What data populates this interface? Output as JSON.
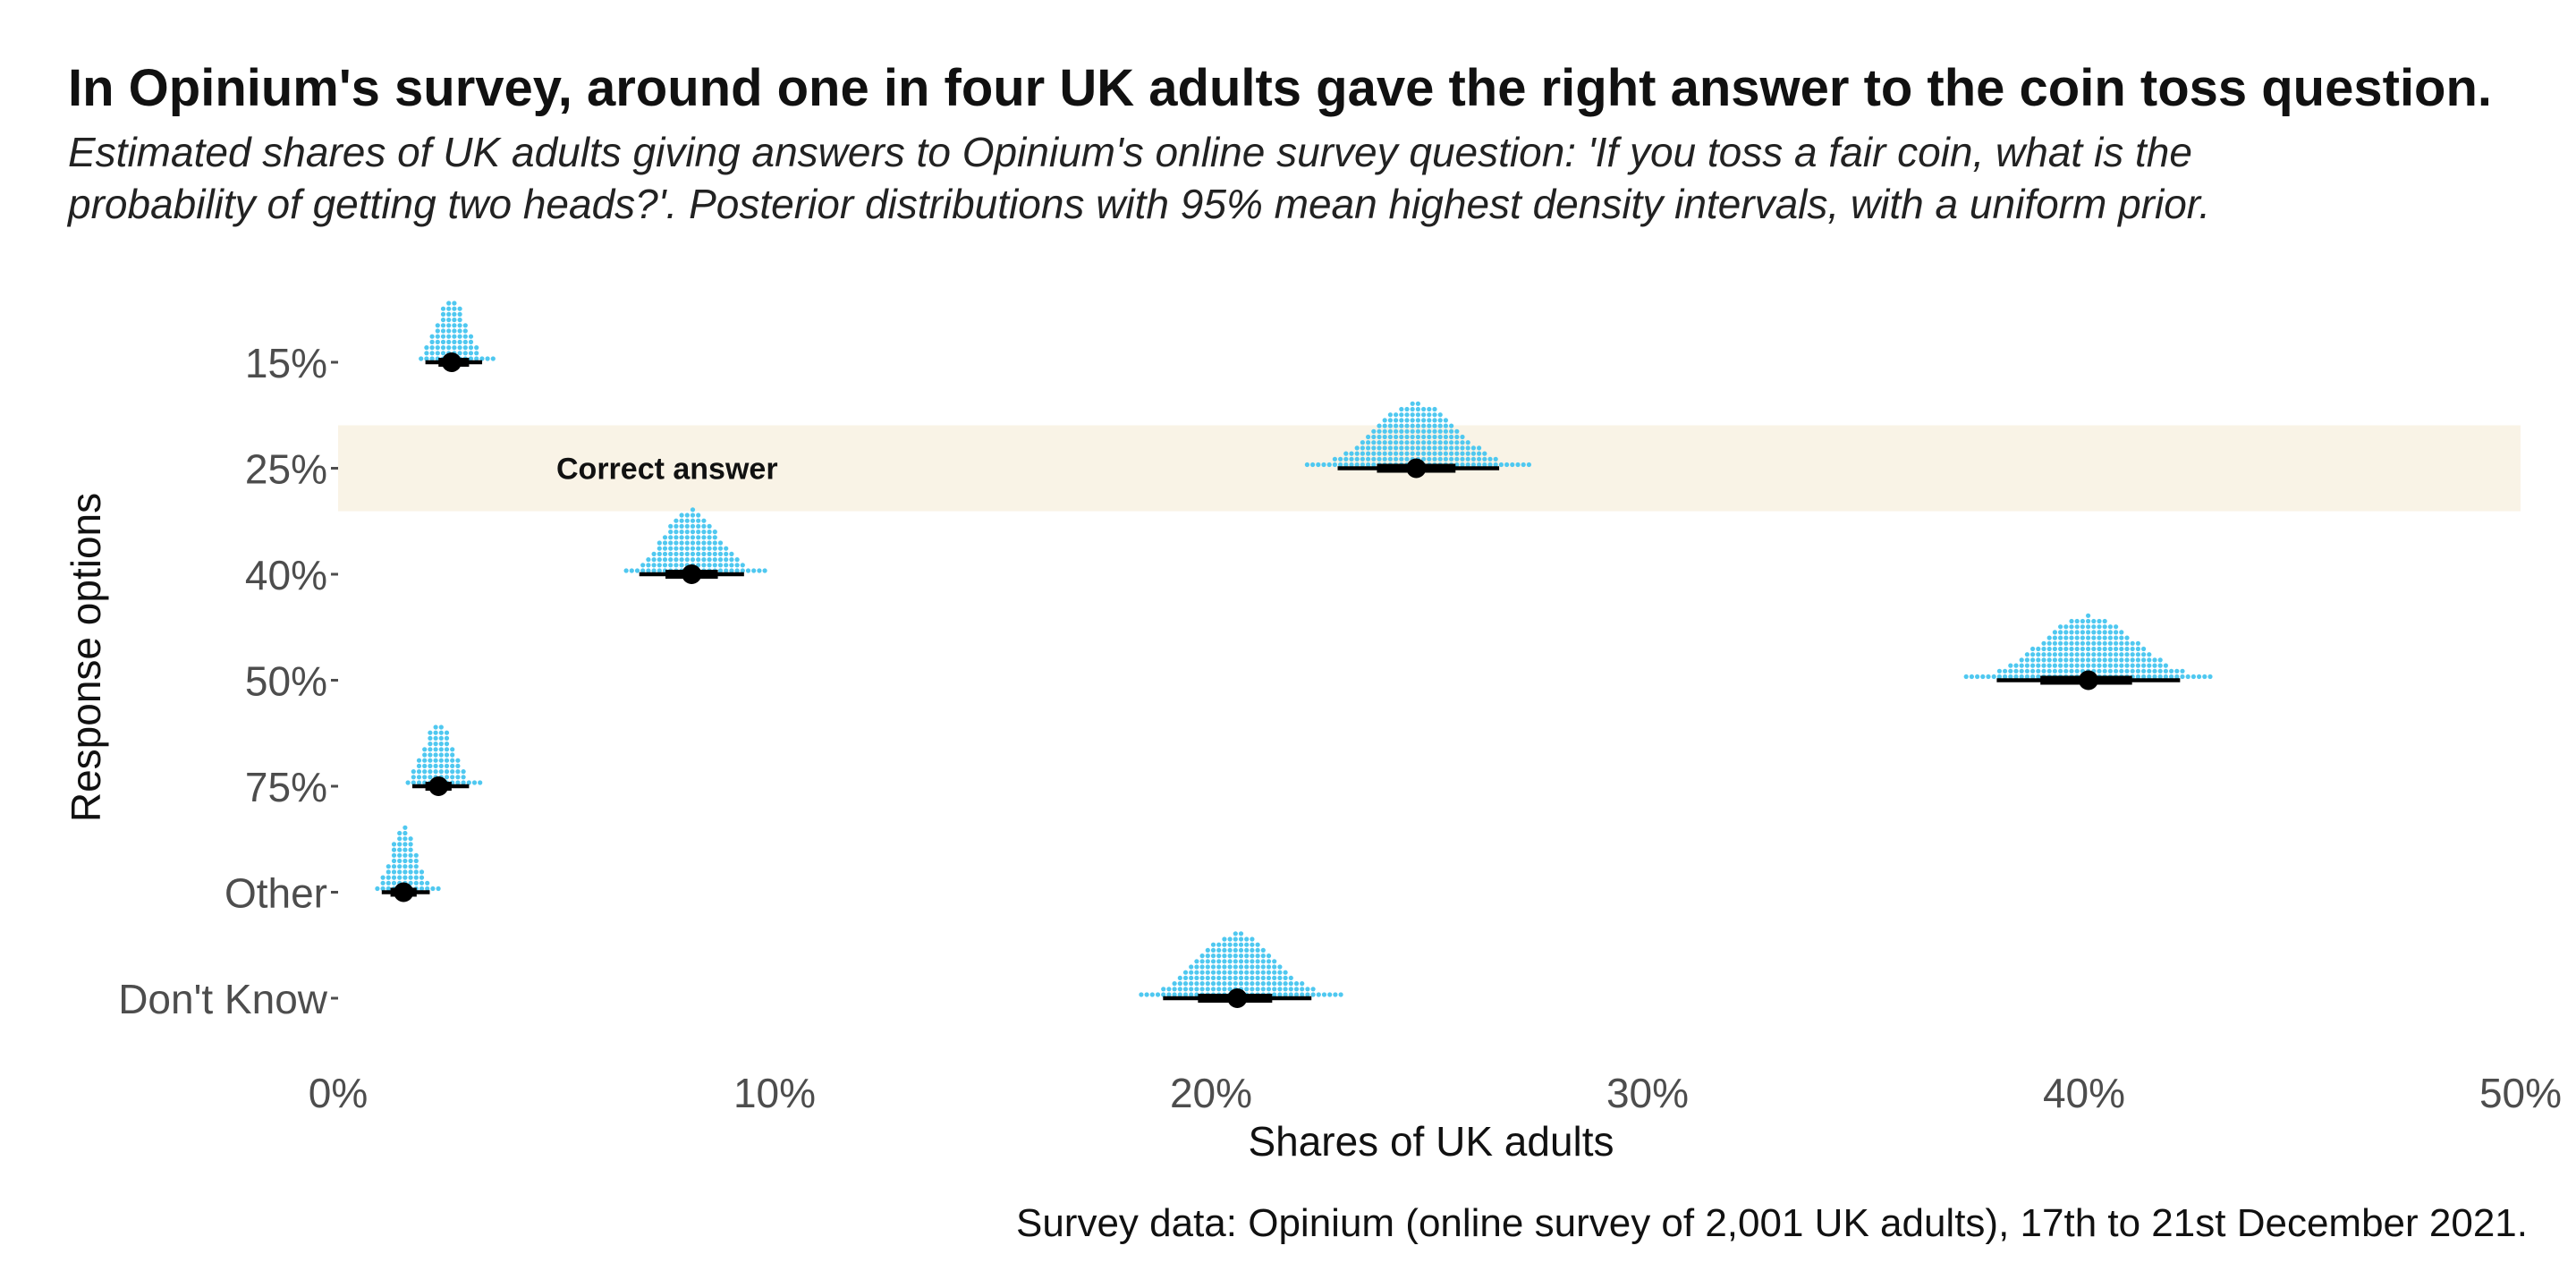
{
  "chart_data": {
    "type": "scatter",
    "title": "In Opinium's survey, around one in four UK adults gave the right answer to the coin toss question.",
    "subtitle_lines": [
      "Estimated shares of UK adults giving answers to Opinium's online survey question: 'If you toss a fair coin, what is the",
      "probability of getting two heads?'. Posterior distributions with 95% mean highest density intervals, with a uniform prior."
    ],
    "xlabel": "Shares of UK adults",
    "ylabel": "Response options",
    "caption": "Survey data: Opinium (online survey of 2,001 UK adults), 17th to 21st December 2021.",
    "xlim": [
      0,
      50
    ],
    "x_ticks": [
      0,
      10,
      20,
      30,
      40,
      50
    ],
    "x_tick_labels": [
      "0%",
      "10%",
      "20%",
      "30%",
      "40%",
      "50%"
    ],
    "highlight": {
      "category": "25%",
      "label": "Correct answer",
      "color": "#f9f3e6"
    },
    "colors": {
      "dots": "#4fc8f0",
      "interval": "#000000"
    },
    "categories": [
      "15%",
      "25%",
      "40%",
      "50%",
      "75%",
      "Other",
      "Don't Know"
    ],
    "series": [
      {
        "category": "15%",
        "mean": 2.6,
        "interval_95": [
          2.0,
          3.3
        ],
        "interval_66": [
          2.3,
          3.0
        ],
        "dist_range": [
          1.9,
          3.6
        ]
      },
      {
        "category": "25%",
        "mean": 24.7,
        "interval_95": [
          22.9,
          26.6
        ],
        "interval_66": [
          23.8,
          25.6
        ],
        "dist_range": [
          22.2,
          27.3
        ]
      },
      {
        "category": "40%",
        "mean": 8.1,
        "interval_95": [
          6.9,
          9.3
        ],
        "interval_66": [
          7.5,
          8.7
        ],
        "dist_range": [
          6.6,
          9.8
        ]
      },
      {
        "category": "50%",
        "mean": 40.1,
        "interval_95": [
          38.0,
          42.2
        ],
        "interval_66": [
          39.0,
          41.1
        ],
        "dist_range": [
          37.3,
          42.9
        ]
      },
      {
        "category": "75%",
        "mean": 2.3,
        "interval_95": [
          1.7,
          3.0
        ],
        "interval_66": [
          2.0,
          2.6
        ],
        "dist_range": [
          1.6,
          3.3
        ]
      },
      {
        "category": "Other",
        "mean": 1.5,
        "interval_95": [
          1.0,
          2.1
        ],
        "interval_66": [
          1.2,
          1.8
        ],
        "dist_range": [
          0.9,
          2.4
        ]
      },
      {
        "category": "Don't Know",
        "mean": 20.6,
        "interval_95": [
          18.9,
          22.3
        ],
        "interval_66": [
          19.7,
          21.4
        ],
        "dist_range": [
          18.4,
          23.0
        ]
      }
    ]
  }
}
